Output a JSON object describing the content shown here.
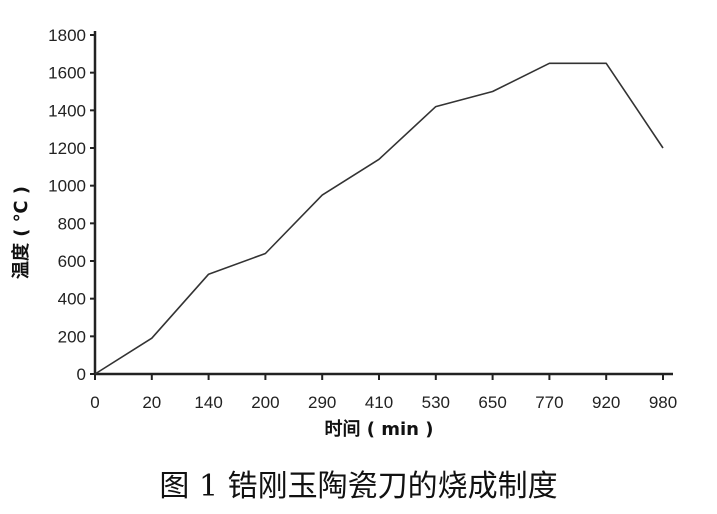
{
  "caption": "图 1 锆刚玉陶瓷刀的烧成制度",
  "chart_data": {
    "type": "line",
    "title": "",
    "xlabel": "时间 ( min )",
    "ylabel": "温度 ( ℃ )",
    "categories": [
      "0",
      "20",
      "140",
      "200",
      "290",
      "410",
      "530",
      "650",
      "770",
      "920",
      "980"
    ],
    "series": [
      {
        "values": [
          0,
          190,
          530,
          640,
          950,
          1140,
          1420,
          1500,
          1650,
          1650,
          1200
        ]
      }
    ],
    "ylim": [
      0,
      1800
    ],
    "yticks": [
      0,
      200,
      400,
      600,
      800,
      1000,
      1200,
      1400,
      1600,
      1800
    ],
    "grid": false,
    "line_color": "#333333",
    "axis_color": "#222222"
  }
}
